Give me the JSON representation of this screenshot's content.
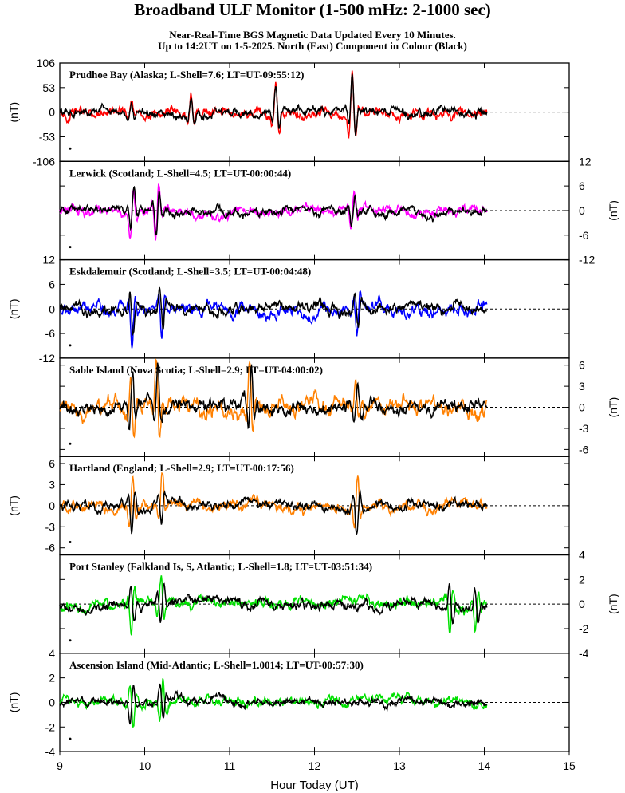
{
  "header": {
    "title": "Broadband ULF Monitor (1-500 mHz: 2-1000 sec)",
    "subtitle_line1": "Near-Real-Time BGS Magnetic Data Updated Every 10 Minutes.",
    "subtitle_line2": "Up to 14:2UT on 1-5-2025. North (East) Component in Colour (Black)"
  },
  "chart_data": {
    "type": "line",
    "x_axis": {
      "label": "Hour Today (UT)",
      "range": [
        9,
        15
      ],
      "ticks": [
        9,
        10,
        11,
        12,
        13,
        14,
        15
      ],
      "tick_labels": [
        "9",
        "10",
        "11",
        "12",
        "13",
        "14",
        "15"
      ],
      "data_end": 14.03
    },
    "unit_label": "(nT)",
    "panels": [
      {
        "station": "Prudhoe Bay (Alaska; L-Shell=7.6; LT=UT-09:55:12)",
        "north_color": "#ff0000",
        "east_color": "#000000",
        "ylim": [
          -106,
          106
        ],
        "yticks": [
          106,
          53,
          0,
          -53,
          -106
        ],
        "ytick_labels": [
          "106",
          "53",
          "0",
          "-53",
          "-106"
        ],
        "axis_side": "left",
        "approx_amplitude_nT": 14,
        "peak_events": [
          [
            9.85,
            28
          ],
          [
            10.55,
            45
          ],
          [
            11.55,
            75
          ],
          [
            12.45,
            106
          ]
        ]
      },
      {
        "station": "Lerwick (Scotland; L-Shell=4.5; LT=UT-00:00:44)",
        "north_color": "#ff00ff",
        "east_color": "#000000",
        "ylim": [
          -12,
          12
        ],
        "yticks": [
          12,
          6,
          0,
          -6,
          -12
        ],
        "ytick_labels": [
          "12",
          "6",
          "0",
          "-6",
          "-12"
        ],
        "axis_side": "right",
        "approx_amplitude_nT": 1.6,
        "peak_events": [
          [
            9.85,
            8
          ],
          [
            10.15,
            8
          ],
          [
            12.45,
            6
          ]
        ]
      },
      {
        "station": "Eskdalemuir (Scotland; L-Shell=3.5; LT=UT-00:04:48)",
        "north_color": "#0000ff",
        "east_color": "#000000",
        "ylim": [
          -12,
          12
        ],
        "yticks": [
          12,
          6,
          0,
          -6,
          -12
        ],
        "ytick_labels": [
          "12",
          "6",
          "0",
          "-6",
          "-12"
        ],
        "axis_side": "left",
        "approx_amplitude_nT": 2,
        "peak_events": [
          [
            9.85,
            9
          ],
          [
            10.2,
            8
          ],
          [
            12.5,
            7
          ]
        ]
      },
      {
        "station": "Sable Island (Nova Scotia; L-Shell=2.9; LT=UT-04:00:02)",
        "north_color": "#ff8000",
        "east_color": "#000000",
        "ylim": [
          -7,
          7
        ],
        "yticks": [
          6,
          3,
          0,
          -3,
          -6
        ],
        "ytick_labels": [
          "6",
          "3",
          "0",
          "-3",
          "-6"
        ],
        "axis_side": "right",
        "approx_amplitude_nT": 1.5,
        "peak_events": [
          [
            9.85,
            6
          ],
          [
            10.15,
            7
          ],
          [
            11.25,
            7
          ],
          [
            12.5,
            4
          ]
        ]
      },
      {
        "station": "Hartland (England; L-Shell=2.9; LT=UT-00:17:56)",
        "north_color": "#ff8000",
        "east_color": "#000000",
        "ylim": [
          -7,
          7
        ],
        "yticks": [
          6,
          3,
          0,
          -3,
          -6
        ],
        "ytick_labels": [
          "6",
          "3",
          "0",
          "-3",
          "-6"
        ],
        "axis_side": "left",
        "approx_amplitude_nT": 1,
        "peak_events": [
          [
            9.85,
            5
          ],
          [
            10.2,
            4.5
          ],
          [
            12.5,
            5
          ]
        ]
      },
      {
        "station": "Port Stanley (Falkland Is, S, Atlantic; L-Shell=1.8; LT=UT-03:51:34)",
        "north_color": "#00e000",
        "east_color": "#000000",
        "ylim": [
          -4,
          4
        ],
        "yticks": [
          4,
          2,
          0,
          -2,
          -4
        ],
        "ytick_labels": [
          "4",
          "2",
          "0",
          "-2",
          "-4"
        ],
        "axis_side": "right",
        "approx_amplitude_nT": 0.6,
        "peak_events": [
          [
            9.85,
            2.3
          ],
          [
            10.2,
            -2.5
          ],
          [
            13.6,
            2.5
          ],
          [
            13.9,
            2.2
          ]
        ]
      },
      {
        "station": "Ascension Island (Mid-Atlantic; L-Shell=1.0014; LT=UT-00:57:30)",
        "north_color": "#00e000",
        "east_color": "#000000",
        "ylim": [
          -4,
          4
        ],
        "yticks": [
          4,
          2,
          0,
          -2,
          -4
        ],
        "ytick_labels": [
          "4",
          "2",
          "0",
          "-2",
          "-4"
        ],
        "axis_side": "left",
        "approx_amplitude_nT": 0.5,
        "peak_events": [
          [
            9.85,
            2.2
          ],
          [
            10.2,
            -2.4
          ]
        ]
      }
    ]
  }
}
